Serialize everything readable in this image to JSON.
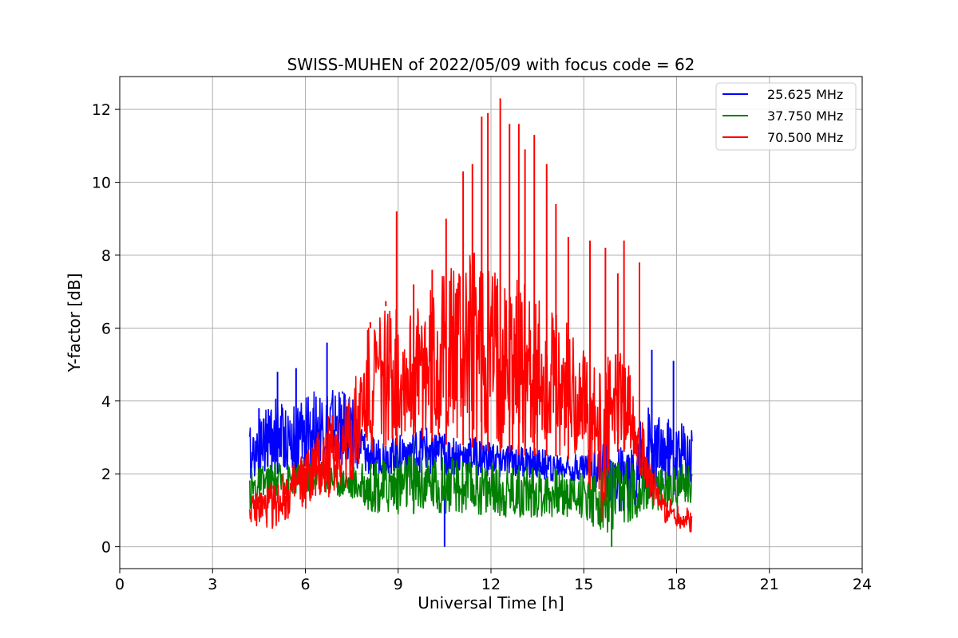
{
  "chart_data": {
    "type": "line",
    "title": "SWISS-MUHEN of 2022/05/09 with focus code = 62",
    "xlabel": "Universal Time [h]",
    "ylabel": "Y-factor [dB]",
    "xlim": [
      0,
      24
    ],
    "ylim": [
      -0.6,
      12.9
    ],
    "xticks": [
      0,
      3,
      6,
      9,
      12,
      15,
      18,
      21,
      24
    ],
    "yticks": [
      0,
      2,
      4,
      6,
      8,
      10,
      12
    ],
    "grid": true,
    "legend_position": "top-right",
    "series": [
      {
        "name": "25.625 MHz",
        "color": "#0000ff",
        "x": [
          4.2,
          4.5,
          5.0,
          5.5,
          6.0,
          6.5,
          7.0,
          7.5,
          8.0,
          8.5,
          9.0,
          9.5,
          10.0,
          10.5,
          11.0,
          11.5,
          12.0,
          12.5,
          13.0,
          13.5,
          14.0,
          14.5,
          15.0,
          15.5,
          16.0,
          16.5,
          17.0,
          17.5,
          18.0,
          18.5
        ],
        "lower": [
          1.8,
          2.0,
          2.0,
          2.0,
          2.2,
          2.2,
          2.2,
          2.2,
          1.9,
          2.0,
          2.0,
          2.0,
          2.0,
          1.9,
          1.9,
          1.9,
          1.9,
          1.9,
          1.9,
          1.9,
          1.8,
          1.8,
          1.8,
          1.5,
          1.0,
          0.9,
          1.3,
          1.5,
          1.4,
          1.4
        ],
        "upper": [
          3.3,
          3.6,
          4.2,
          3.8,
          4.1,
          4.4,
          4.3,
          4.2,
          3.0,
          3.0,
          3.2,
          3.2,
          3.3,
          3.1,
          3.0,
          3.0,
          2.9,
          2.8,
          2.8,
          2.7,
          2.6,
          2.6,
          2.6,
          2.9,
          2.8,
          2.6,
          3.9,
          3.6,
          3.4,
          3.5
        ],
        "spikes": [
          [
            4.5,
            3.8
          ],
          [
            5.1,
            4.8
          ],
          [
            5.7,
            4.9
          ],
          [
            6.7,
            5.6
          ],
          [
            7.2,
            4.2
          ],
          [
            10.5,
            0.0
          ],
          [
            17.2,
            5.4
          ],
          [
            17.9,
            5.1
          ]
        ]
      },
      {
        "name": "37.750 MHz",
        "color": "#008000",
        "x": [
          4.2,
          4.5,
          5.0,
          5.5,
          6.0,
          6.5,
          7.0,
          7.5,
          8.0,
          8.5,
          9.0,
          9.5,
          10.0,
          10.5,
          11.0,
          11.5,
          12.0,
          12.5,
          13.0,
          13.5,
          14.0,
          14.5,
          15.0,
          15.5,
          16.0,
          16.5,
          17.0,
          17.5,
          18.0,
          18.5
        ],
        "lower": [
          1.0,
          1.1,
          1.3,
          1.4,
          1.5,
          1.5,
          1.4,
          1.3,
          1.0,
          0.9,
          0.9,
          0.9,
          0.9,
          0.9,
          0.9,
          0.9,
          0.8,
          0.8,
          0.8,
          0.8,
          0.8,
          0.8,
          0.8,
          0.4,
          0.2,
          0.7,
          0.9,
          1.0,
          1.1,
          1.2
        ],
        "upper": [
          2.2,
          2.2,
          2.3,
          2.3,
          2.4,
          2.4,
          2.3,
          2.2,
          2.3,
          2.4,
          2.6,
          2.6,
          2.6,
          2.5,
          2.4,
          2.4,
          2.3,
          2.3,
          2.3,
          2.2,
          2.2,
          2.1,
          2.0,
          2.2,
          2.4,
          2.4,
          2.2,
          2.2,
          2.3,
          2.2
        ],
        "spikes": [
          [
            9.5,
            2.9
          ],
          [
            15.9,
            0.0
          ]
        ]
      },
      {
        "name": "70.500 MHz",
        "color": "#ff0000",
        "x": [
          4.2,
          4.5,
          5.0,
          5.5,
          6.0,
          6.5,
          7.0,
          7.5,
          8.0,
          8.5,
          9.0,
          9.5,
          10.0,
          10.5,
          11.0,
          11.5,
          12.0,
          12.5,
          13.0,
          13.5,
          14.0,
          14.5,
          15.0,
          15.5,
          16.0,
          16.5,
          17.0,
          17.5,
          18.0,
          18.5
        ],
        "lower": [
          0.7,
          0.5,
          0.5,
          0.8,
          1.0,
          1.2,
          1.5,
          1.6,
          2.5,
          2.7,
          2.8,
          3.0,
          2.9,
          2.8,
          2.8,
          2.7,
          2.6,
          2.6,
          2.5,
          2.5,
          2.5,
          2.4,
          2.4,
          0.3,
          2.6,
          2.6,
          1.6,
          0.7,
          0.5,
          0.3
        ],
        "upper": [
          1.3,
          1.6,
          1.8,
          2.2,
          2.7,
          3.3,
          3.9,
          4.2,
          6.0,
          6.8,
          6.5,
          6.5,
          7.0,
          7.5,
          8.0,
          8.3,
          7.8,
          7.5,
          7.3,
          6.8,
          6.4,
          6.2,
          5.5,
          5.0,
          5.5,
          5.0,
          3.0,
          1.5,
          1.2,
          1.0
        ],
        "spikes": [
          [
            8.1,
            6.0
          ],
          [
            8.6,
            6.6
          ],
          [
            8.95,
            9.2
          ],
          [
            9.5,
            7.2
          ],
          [
            10.1,
            7.6
          ],
          [
            10.55,
            9.0
          ],
          [
            11.1,
            10.3
          ],
          [
            11.4,
            10.5
          ],
          [
            11.7,
            11.8
          ],
          [
            11.9,
            11.9
          ],
          [
            12.3,
            12.3
          ],
          [
            12.6,
            11.6
          ],
          [
            12.9,
            11.6
          ],
          [
            13.1,
            10.9
          ],
          [
            13.4,
            11.3
          ],
          [
            13.8,
            10.5
          ],
          [
            14.1,
            9.4
          ],
          [
            14.5,
            8.5
          ],
          [
            15.2,
            8.4
          ],
          [
            15.7,
            8.2
          ],
          [
            16.1,
            7.5
          ],
          [
            16.3,
            8.4
          ],
          [
            16.8,
            7.8
          ]
        ]
      }
    ]
  }
}
